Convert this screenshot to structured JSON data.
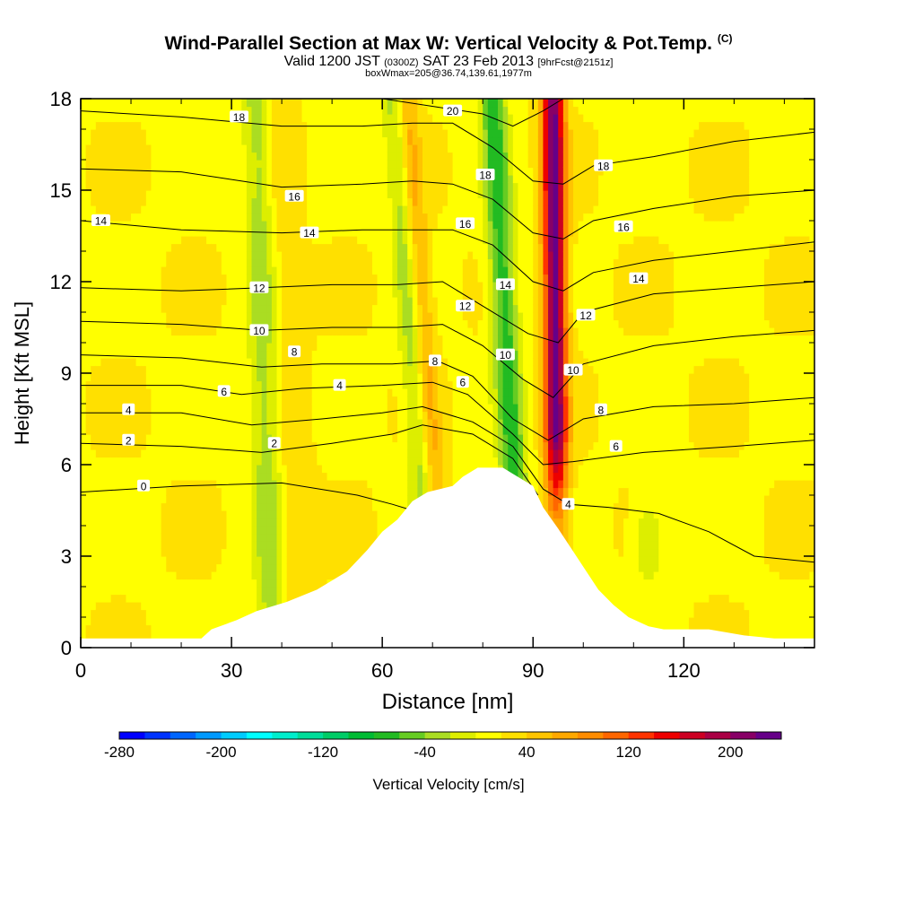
{
  "chart_data": {
    "type": "heatmap",
    "title": "Wind-Parallel Section at Max W: Vertical Velocity & Pot.Temp.",
    "title_mark": "(C)",
    "subtitle": {
      "valid_prefix": "Valid 1200 JST",
      "utc": "(0300Z)",
      "date": "SAT 23 Feb 2013",
      "forecast": "[9hrFcst@2151z]"
    },
    "subtitle2": "boxWmax=205@36.74,139.61,1977m",
    "xlabel": "Distance [nm]",
    "ylabel": "Height [Kft MSL]",
    "xlim": [
      0,
      146
    ],
    "ylim": [
      0,
      18
    ],
    "x_ticks": [
      0,
      30,
      60,
      90,
      120
    ],
    "y_ticks": [
      0,
      3,
      6,
      9,
      12,
      15,
      18
    ],
    "colorbar": {
      "label": "Vertical Velocity [cm/s]",
      "min": -280,
      "max": 240,
      "step": 20,
      "tick_labels": [
        -280,
        -200,
        -120,
        -40,
        40,
        120,
        200
      ],
      "colors": [
        "#0000ff",
        "#0033ff",
        "#0066ff",
        "#0099ff",
        "#00ccff",
        "#00ffff",
        "#00eecc",
        "#00dd99",
        "#00cc66",
        "#00bb33",
        "#22bb22",
        "#66cc22",
        "#aadd22",
        "#ddee00",
        "#ffff00",
        "#ffe000",
        "#ffc400",
        "#ffa800",
        "#ff8c00",
        "#ff6600",
        "#ff3300",
        "#ee0000",
        "#cc0022",
        "#aa0044",
        "#880066",
        "#660088"
      ]
    },
    "terrain": [
      [
        0,
        0.3
      ],
      [
        8,
        0.3
      ],
      [
        16,
        0.3
      ],
      [
        24,
        0.3
      ],
      [
        26,
        0.6
      ],
      [
        31,
        0.9
      ],
      [
        35,
        1.2
      ],
      [
        41,
        1.5
      ],
      [
        47,
        1.9
      ],
      [
        53,
        2.5
      ],
      [
        57,
        3.2
      ],
      [
        60,
        3.8
      ],
      [
        63,
        4.2
      ],
      [
        66,
        4.8
      ],
      [
        69,
        5.1
      ],
      [
        74,
        5.3
      ],
      [
        76,
        5.6
      ],
      [
        79,
        5.9
      ],
      [
        84,
        5.9
      ],
      [
        86,
        5.7
      ],
      [
        90,
        5.3
      ],
      [
        92,
        4.6
      ],
      [
        95,
        3.9
      ],
      [
        97,
        3.4
      ],
      [
        99,
        2.9
      ],
      [
        101,
        2.4
      ],
      [
        103,
        1.9
      ],
      [
        106,
        1.4
      ],
      [
        109,
        1.0
      ],
      [
        113,
        0.7
      ],
      [
        116,
        0.6
      ],
      [
        125,
        0.6
      ],
      [
        132,
        0.4
      ],
      [
        138,
        0.3
      ],
      [
        146,
        0.3
      ]
    ],
    "updrafts": [
      {
        "x0": 95,
        "x1": 94,
        "w": 2.2,
        "amp": 210
      },
      {
        "x0": 73,
        "x1": 65,
        "w": 2.0,
        "amp": 45
      },
      {
        "x0": 44,
        "x1": 39,
        "w": 3.5,
        "amp": 18
      }
    ],
    "downdrafts": [
      {
        "x0": 88,
        "x1": 82,
        "w": 2.6,
        "amp": -90
      },
      {
        "x0": 70,
        "x1": 62,
        "w": 2.2,
        "amp": -45
      },
      {
        "x0": 38,
        "x1": 35,
        "w": 3.0,
        "amp": -50
      }
    ],
    "isentropes": [
      {
        "theta": 0,
        "pts": [
          [
            0,
            5.1
          ],
          [
            20,
            5.3
          ],
          [
            40,
            5.4
          ],
          [
            55,
            5.0
          ],
          [
            62,
            4.7
          ],
          [
            66,
            4.5
          ]
        ]
      },
      {
        "theta": 2,
        "pts": [
          [
            0,
            6.7
          ],
          [
            20,
            6.6
          ],
          [
            36,
            6.4
          ],
          [
            50,
            6.7
          ],
          [
            62,
            7.0
          ],
          [
            68,
            7.3
          ],
          [
            78,
            7.0
          ],
          [
            86,
            6.2
          ],
          [
            91,
            5.0
          ]
        ]
      },
      {
        "theta": 4,
        "pts": [
          [
            0,
            7.7
          ],
          [
            20,
            7.7
          ],
          [
            34,
            7.3
          ],
          [
            48,
            7.5
          ],
          [
            60,
            7.7
          ],
          [
            68,
            7.9
          ],
          [
            78,
            7.4
          ],
          [
            86,
            6.6
          ],
          [
            92,
            5.2
          ],
          [
            97,
            4.7
          ],
          [
            105,
            4.6
          ],
          [
            115,
            4.4
          ],
          [
            125,
            3.8
          ],
          [
            134,
            3.0
          ],
          [
            146,
            2.8
          ]
        ]
      },
      {
        "theta": 6,
        "pts": [
          [
            0,
            8.6
          ],
          [
            20,
            8.6
          ],
          [
            32,
            8.3
          ],
          [
            44,
            8.5
          ],
          [
            60,
            8.6
          ],
          [
            70,
            8.7
          ],
          [
            77,
            8.3
          ],
          [
            86,
            7.0
          ],
          [
            92,
            6.0
          ],
          [
            98,
            6.1
          ],
          [
            112,
            6.4
          ],
          [
            130,
            6.6
          ],
          [
            146,
            6.8
          ]
        ]
      },
      {
        "theta": 8,
        "pts": [
          [
            0,
            9.6
          ],
          [
            20,
            9.5
          ],
          [
            36,
            9.2
          ],
          [
            48,
            9.3
          ],
          [
            62,
            9.3
          ],
          [
            71,
            9.4
          ],
          [
            78,
            8.9
          ],
          [
            86,
            7.5
          ],
          [
            93,
            6.8
          ],
          [
            100,
            7.5
          ],
          [
            114,
            7.9
          ],
          [
            130,
            8.0
          ],
          [
            146,
            8.2
          ]
        ]
      },
      {
        "theta": 10,
        "pts": [
          [
            0,
            10.7
          ],
          [
            20,
            10.6
          ],
          [
            36,
            10.4
          ],
          [
            50,
            10.5
          ],
          [
            63,
            10.5
          ],
          [
            72,
            10.6
          ],
          [
            80,
            9.9
          ],
          [
            88,
            8.8
          ],
          [
            94,
            8.2
          ],
          [
            100,
            9.3
          ],
          [
            114,
            9.9
          ],
          [
            130,
            10.2
          ],
          [
            146,
            10.4
          ]
        ]
      },
      {
        "theta": 12,
        "pts": [
          [
            0,
            11.8
          ],
          [
            20,
            11.7
          ],
          [
            36,
            11.8
          ],
          [
            50,
            11.9
          ],
          [
            63,
            11.9
          ],
          [
            72,
            12.0
          ],
          [
            80,
            11.2
          ],
          [
            89,
            10.3
          ],
          [
            95,
            10.0
          ],
          [
            100,
            11.0
          ],
          [
            114,
            11.6
          ],
          [
            130,
            11.8
          ],
          [
            146,
            12.0
          ]
        ]
      },
      {
        "theta": 14,
        "pts": [
          [
            0,
            14.0
          ],
          [
            20,
            13.7
          ],
          [
            40,
            13.6
          ],
          [
            56,
            13.7
          ],
          [
            66,
            13.7
          ],
          [
            74,
            13.7
          ],
          [
            82,
            13.2
          ],
          [
            90,
            12.0
          ],
          [
            96,
            11.7
          ],
          [
            102,
            12.3
          ],
          [
            114,
            12.7
          ],
          [
            130,
            13.0
          ],
          [
            146,
            13.3
          ]
        ]
      },
      {
        "theta": 16,
        "pts": [
          [
            0,
            15.7
          ],
          [
            20,
            15.6
          ],
          [
            40,
            15.1
          ],
          [
            56,
            15.2
          ],
          [
            66,
            15.3
          ],
          [
            74,
            15.2
          ],
          [
            82,
            14.7
          ],
          [
            90,
            13.6
          ],
          [
            96,
            13.4
          ],
          [
            102,
            14.0
          ],
          [
            114,
            14.4
          ],
          [
            130,
            14.8
          ],
          [
            146,
            15.0
          ]
        ]
      },
      {
        "theta": 18,
        "pts": [
          [
            0,
            17.6
          ],
          [
            20,
            17.4
          ],
          [
            40,
            17.1
          ],
          [
            56,
            17.1
          ],
          [
            66,
            17.2
          ],
          [
            74,
            17.2
          ],
          [
            82,
            16.4
          ],
          [
            90,
            15.3
          ],
          [
            96,
            15.2
          ],
          [
            102,
            15.8
          ],
          [
            114,
            16.1
          ],
          [
            130,
            16.6
          ],
          [
            146,
            16.9
          ]
        ]
      },
      {
        "theta": 20,
        "pts": [
          [
            60,
            18.0
          ],
          [
            72,
            17.7
          ],
          [
            80,
            17.5
          ],
          [
            86,
            17.1
          ],
          [
            92,
            17.6
          ],
          [
            96,
            18.0
          ]
        ]
      }
    ],
    "contour_labels": [
      {
        "text": "0",
        "x": 12.5,
        "y": 5.3
      },
      {
        "text": "2",
        "x": 9.5,
        "y": 6.8
      },
      {
        "text": "4",
        "x": 9.5,
        "y": 7.8
      },
      {
        "text": "2",
        "x": 38.5,
        "y": 6.7
      },
      {
        "text": "6",
        "x": 28.5,
        "y": 8.4
      },
      {
        "text": "4",
        "x": 51.5,
        "y": 8.6
      },
      {
        "text": "8",
        "x": 42.5,
        "y": 9.7
      },
      {
        "text": "10",
        "x": 35.5,
        "y": 10.4
      },
      {
        "text": "12",
        "x": 35.5,
        "y": 11.8
      },
      {
        "text": "14",
        "x": 4,
        "y": 14.0
      },
      {
        "text": "14",
        "x": 45.5,
        "y": 13.6
      },
      {
        "text": "16",
        "x": 42.5,
        "y": 14.8
      },
      {
        "text": "18",
        "x": 31.5,
        "y": 17.4
      },
      {
        "text": "8",
        "x": 70.5,
        "y": 9.4
      },
      {
        "text": "6",
        "x": 76,
        "y": 8.7
      },
      {
        "text": "12",
        "x": 76.5,
        "y": 11.2
      },
      {
        "text": "16",
        "x": 76.5,
        "y": 13.9
      },
      {
        "text": "18",
        "x": 80.5,
        "y": 15.5
      },
      {
        "text": "20",
        "x": 74,
        "y": 17.6
      },
      {
        "text": "14",
        "x": 84.5,
        "y": 11.9
      },
      {
        "text": "10",
        "x": 84.5,
        "y": 9.6
      },
      {
        "text": "10",
        "x": 98,
        "y": 9.1
      },
      {
        "text": "12",
        "x": 100.5,
        "y": 10.9
      },
      {
        "text": "8",
        "x": 103.5,
        "y": 7.8
      },
      {
        "text": "6",
        "x": 106.5,
        "y": 6.6
      },
      {
        "text": "4",
        "x": 97,
        "y": 4.7
      },
      {
        "text": "14",
        "x": 111,
        "y": 12.1
      },
      {
        "text": "16",
        "x": 108,
        "y": 13.8
      },
      {
        "text": "18",
        "x": 104,
        "y": 15.8
      }
    ]
  }
}
